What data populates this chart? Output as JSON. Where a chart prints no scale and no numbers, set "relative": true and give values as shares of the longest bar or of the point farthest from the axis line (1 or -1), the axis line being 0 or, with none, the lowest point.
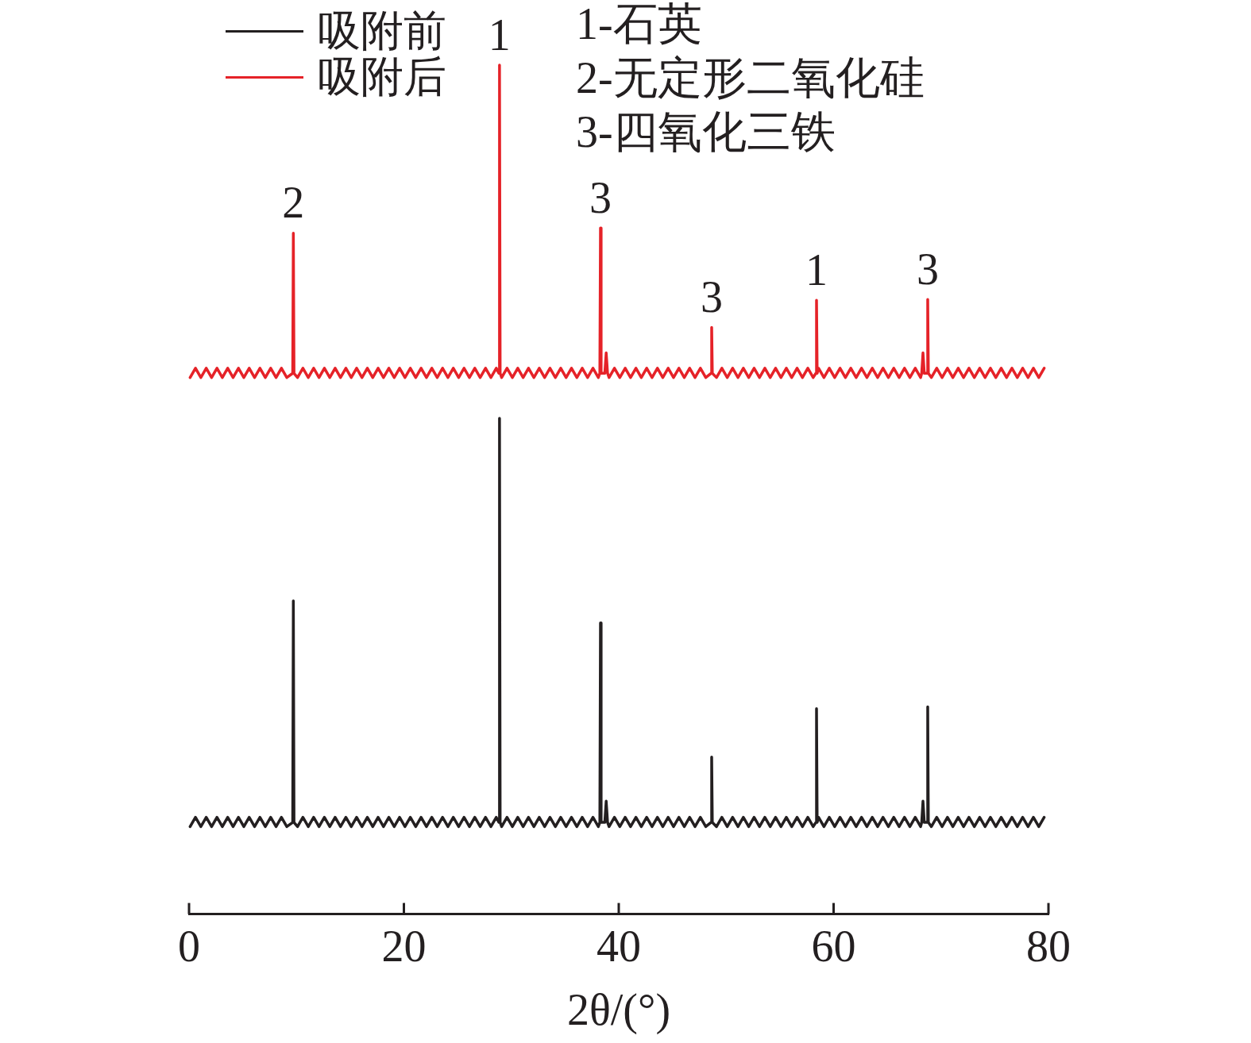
{
  "chart_data": {
    "type": "line",
    "relative": true,
    "xlabel": "2θ/(°)",
    "xlim": [
      0,
      80
    ],
    "xticks": [
      0,
      20,
      40,
      60,
      80
    ],
    "legend": "top left",
    "annotations": [
      "1-石英",
      "2-无定形二氧化硅",
      "3-四氧化三铁",
      {
        "text": "2",
        "x": 9.71,
        "y": 0.802
      },
      {
        "text": "1",
        "x": 28.9,
        "y": 1
      },
      {
        "text": "3",
        "x": 38.3,
        "y": 0.808
      },
      {
        "text": "3",
        "x": 48.65,
        "y": 0.691
      },
      {
        "text": "1",
        "x": 58.41,
        "y": 0.723
      },
      {
        "text": "3",
        "x": 68.76,
        "y": 0.724
      }
    ],
    "x": [
      0.1,
      0.6,
      1.1,
      1.6,
      2.1,
      2.6,
      3.1,
      3.6,
      4.1,
      4.6,
      5.1,
      5.6,
      6.1,
      6.6,
      7.1,
      7.6,
      8.1,
      8.6,
      9.1,
      9.65,
      9.71,
      9.77,
      10.1,
      10.6,
      11.1,
      11.6,
      12.1,
      12.6,
      13.1,
      13.6,
      14.1,
      14.6,
      15.1,
      15.6,
      16.1,
      16.6,
      17.1,
      17.6,
      18.1,
      18.6,
      19.1,
      19.6,
      20.1,
      20.6,
      21.1,
      21.6,
      22.1,
      22.6,
      23.1,
      23.6,
      24.1,
      24.6,
      25.1,
      25.6,
      26.1,
      26.6,
      27.1,
      27.6,
      28.1,
      28.6,
      28.84,
      28.9,
      28.96,
      29.1,
      29.6,
      30.1,
      30.6,
      31.1,
      31.6,
      32.1,
      32.6,
      33.1,
      33.6,
      34.1,
      34.6,
      35.1,
      35.6,
      36.1,
      36.6,
      37.1,
      37.6,
      38.1,
      38.24,
      38.3,
      38.36,
      38.7,
      38.83,
      38.96,
      39.1,
      39.6,
      40.1,
      40.6,
      41.1,
      41.6,
      42.1,
      42.6,
      43.1,
      43.6,
      44.1,
      44.6,
      45.1,
      45.6,
      46.1,
      46.6,
      47.1,
      47.6,
      48.1,
      48.59,
      48.65,
      48.71,
      49.1,
      49.6,
      50.1,
      50.6,
      51.1,
      51.6,
      52.1,
      52.6,
      53.1,
      53.6,
      54.1,
      54.6,
      55.1,
      55.6,
      56.1,
      56.6,
      57.1,
      57.6,
      58.1,
      58.35,
      58.41,
      58.47,
      58.6,
      59.1,
      59.6,
      60.1,
      60.6,
      61.1,
      61.6,
      62.1,
      62.6,
      63.1,
      63.6,
      64.1,
      64.6,
      65.1,
      65.6,
      66.1,
      66.6,
      67.1,
      67.6,
      68.1,
      68.2,
      68.32,
      68.44,
      68.7,
      68.76,
      68.82,
      69.1,
      69.6,
      70.1,
      70.6,
      71.1,
      71.6,
      72.1,
      72.6,
      73.1,
      73.6,
      74.1,
      74.6,
      75.1,
      75.6,
      76.1,
      76.6,
      77.1,
      77.6,
      78.1,
      78.6,
      79.1,
      79.6
    ],
    "series": [
      {
        "name": "吸附前",
        "color": "#231f20",
        "values": [
          0.103,
          0.114,
          0.103,
          0.114,
          0.103,
          0.114,
          0.103,
          0.114,
          0.103,
          0.114,
          0.103,
          0.114,
          0.103,
          0.114,
          0.103,
          0.114,
          0.103,
          0.114,
          0.103,
          0.108,
          0.369,
          0.108,
          0.103,
          0.114,
          0.103,
          0.114,
          0.103,
          0.114,
          0.103,
          0.114,
          0.103,
          0.114,
          0.103,
          0.114,
          0.103,
          0.114,
          0.103,
          0.114,
          0.103,
          0.114,
          0.103,
          0.114,
          0.103,
          0.114,
          0.103,
          0.114,
          0.103,
          0.114,
          0.103,
          0.114,
          0.103,
          0.114,
          0.103,
          0.114,
          0.103,
          0.114,
          0.103,
          0.114,
          0.103,
          0.114,
          0.108,
          0.584,
          0.108,
          0.103,
          0.114,
          0.103,
          0.114,
          0.103,
          0.114,
          0.103,
          0.114,
          0.103,
          0.114,
          0.103,
          0.114,
          0.103,
          0.114,
          0.103,
          0.114,
          0.103,
          0.114,
          0.103,
          0.108,
          0.343,
          0.108,
          0.108,
          0.133,
          0.108,
          0.103,
          0.114,
          0.103,
          0.114,
          0.103,
          0.114,
          0.103,
          0.114,
          0.103,
          0.114,
          0.103,
          0.114,
          0.103,
          0.114,
          0.103,
          0.114,
          0.103,
          0.114,
          0.103,
          0.108,
          0.185,
          0.108,
          0.103,
          0.114,
          0.103,
          0.114,
          0.103,
          0.114,
          0.103,
          0.114,
          0.103,
          0.114,
          0.103,
          0.114,
          0.103,
          0.114,
          0.103,
          0.114,
          0.103,
          0.114,
          0.103,
          0.108,
          0.242,
          0.108,
          0.114,
          0.103,
          0.114,
          0.103,
          0.114,
          0.103,
          0.114,
          0.103,
          0.114,
          0.103,
          0.114,
          0.103,
          0.114,
          0.103,
          0.114,
          0.103,
          0.114,
          0.103,
          0.114,
          0.103,
          0.108,
          0.133,
          0.108,
          0.108,
          0.244,
          0.108,
          0.103,
          0.114,
          0.103,
          0.114,
          0.103,
          0.114,
          0.103,
          0.114,
          0.103,
          0.114,
          0.103,
          0.114,
          0.103,
          0.114,
          0.103,
          0.114,
          0.103,
          0.114,
          0.103,
          0.114,
          0.103,
          0.114
        ]
      },
      {
        "name": "吸附后",
        "color": "#e52228",
        "values": [
          0.632,
          0.643,
          0.632,
          0.643,
          0.632,
          0.643,
          0.632,
          0.643,
          0.632,
          0.643,
          0.632,
          0.643,
          0.632,
          0.643,
          0.632,
          0.643,
          0.632,
          0.643,
          0.632,
          0.637,
          0.802,
          0.637,
          0.632,
          0.643,
          0.632,
          0.643,
          0.632,
          0.643,
          0.632,
          0.643,
          0.632,
          0.643,
          0.632,
          0.643,
          0.632,
          0.643,
          0.632,
          0.643,
          0.632,
          0.643,
          0.632,
          0.643,
          0.632,
          0.643,
          0.632,
          0.643,
          0.632,
          0.643,
          0.632,
          0.643,
          0.632,
          0.643,
          0.632,
          0.643,
          0.632,
          0.643,
          0.632,
          0.643,
          0.632,
          0.643,
          0.637,
          1,
          0.637,
          0.632,
          0.643,
          0.632,
          0.643,
          0.632,
          0.643,
          0.632,
          0.643,
          0.632,
          0.643,
          0.632,
          0.643,
          0.632,
          0.643,
          0.632,
          0.643,
          0.632,
          0.643,
          0.632,
          0.637,
          0.808,
          0.637,
          0.637,
          0.661,
          0.637,
          0.632,
          0.643,
          0.632,
          0.643,
          0.632,
          0.643,
          0.632,
          0.643,
          0.632,
          0.643,
          0.632,
          0.643,
          0.632,
          0.643,
          0.632,
          0.643,
          0.632,
          0.643,
          0.632,
          0.637,
          0.691,
          0.637,
          0.632,
          0.643,
          0.632,
          0.643,
          0.632,
          0.643,
          0.632,
          0.643,
          0.632,
          0.643,
          0.632,
          0.643,
          0.632,
          0.643,
          0.632,
          0.643,
          0.632,
          0.643,
          0.632,
          0.637,
          0.723,
          0.637,
          0.643,
          0.632,
          0.643,
          0.632,
          0.643,
          0.632,
          0.643,
          0.632,
          0.643,
          0.632,
          0.643,
          0.632,
          0.643,
          0.632,
          0.643,
          0.632,
          0.643,
          0.632,
          0.643,
          0.632,
          0.637,
          0.661,
          0.637,
          0.637,
          0.724,
          0.637,
          0.632,
          0.643,
          0.632,
          0.643,
          0.632,
          0.643,
          0.632,
          0.643,
          0.632,
          0.643,
          0.632,
          0.643,
          0.632,
          0.643,
          0.632,
          0.643,
          0.632,
          0.643,
          0.632,
          0.643,
          0.632,
          0.643
        ]
      }
    ]
  }
}
